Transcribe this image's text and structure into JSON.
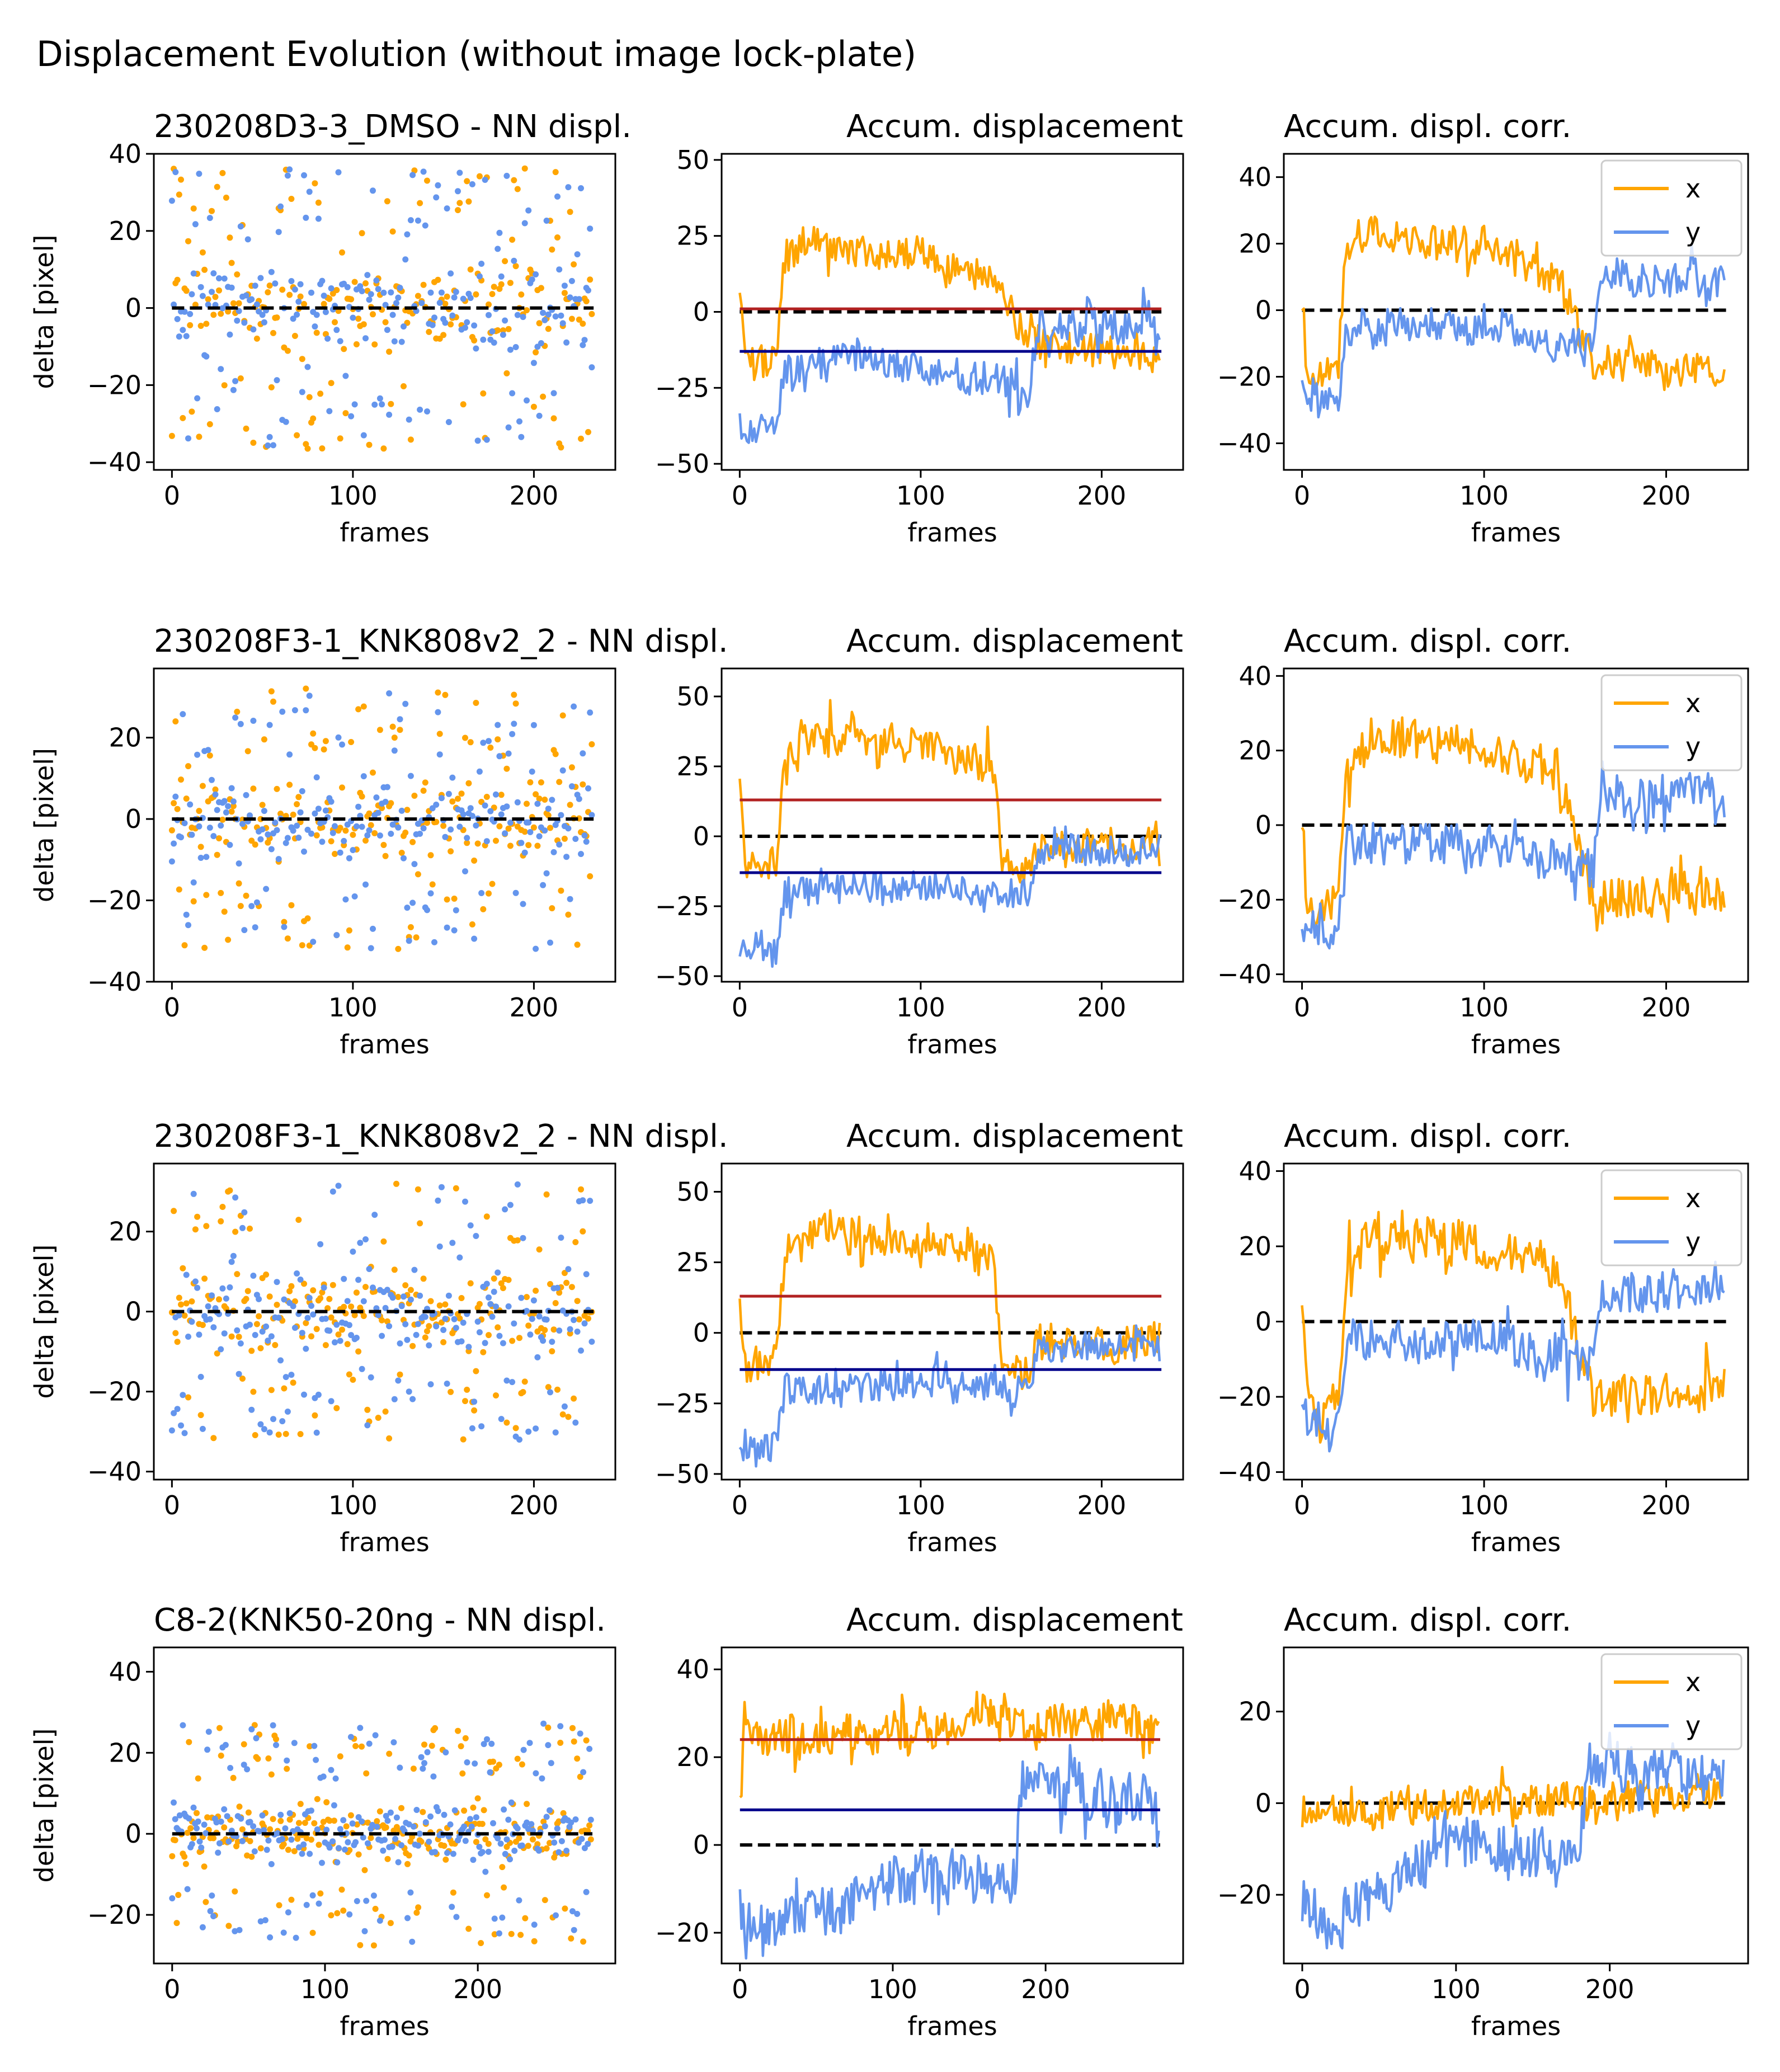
{
  "figure": {
    "suptitle": "Displacement Evolution (without image lock-plate)"
  },
  "colors": {
    "x": "#ffa500",
    "y": "#6495ed",
    "median_x": "#b22222",
    "median_y": "#00008b",
    "zero": "#000000"
  },
  "chart_data": [
    {
      "type": "scatter",
      "title": "230208D3-3_DMSO - NN displ.",
      "xlabel": "frames",
      "ylabel": "delta [pixel]",
      "xlim": [
        -10,
        245
      ],
      "ylim": [
        -42,
        40
      ],
      "xticks": [
        0,
        100,
        200
      ],
      "xticklabels": [
        "0",
        "100",
        "200"
      ],
      "yticks": [
        -40,
        -20,
        0,
        20,
        40
      ],
      "yticklabels": [
        "−40",
        "−20",
        "0",
        "20",
        "40"
      ],
      "n_frames": 233,
      "seed": 11,
      "spread": 9,
      "outlier_amp": 32,
      "series": [
        {
          "name": "x"
        },
        {
          "name": "y"
        }
      ]
    },
    {
      "type": "line",
      "title": "Accum. displacement",
      "xlabel": "frames",
      "ylabel": "",
      "xlim": [
        -10,
        245
      ],
      "ylim": [
        -52,
        52
      ],
      "xticks": [
        0,
        100,
        200
      ],
      "xticklabels": [
        "0",
        "100",
        "200"
      ],
      "yticks": [
        -50,
        -25,
        0,
        25,
        50
      ],
      "yticklabels": [
        "−50",
        "−25",
        "0",
        "25",
        "50"
      ],
      "n_frames": 233,
      "seed": 12,
      "median_x": 1,
      "median_y": -13,
      "series": [
        {
          "name": "x",
          "knots": [
            [
              0,
              5
            ],
            [
              3,
              -18
            ],
            [
              20,
              -15
            ],
            [
              25,
              18
            ],
            [
              40,
              25
            ],
            [
              60,
              20
            ],
            [
              100,
              20
            ],
            [
              140,
              10
            ],
            [
              160,
              -10
            ],
            [
              233,
              -15
            ]
          ],
          "noise": 8
        },
        {
          "name": "y",
          "knots": [
            [
              0,
              -38
            ],
            [
              20,
              -40
            ],
            [
              25,
              -20
            ],
            [
              60,
              -15
            ],
            [
              100,
              -18
            ],
            [
              160,
              -25
            ],
            [
              165,
              -5
            ],
            [
              233,
              -5
            ]
          ],
          "noise": 8
        }
      ]
    },
    {
      "type": "line",
      "title": "Accum. displ. corr.",
      "xlabel": "frames",
      "ylabel": "",
      "xlim": [
        -10,
        245
      ],
      "ylim": [
        -48,
        47
      ],
      "xticks": [
        0,
        100,
        200
      ],
      "xticklabels": [
        "0",
        "100",
        "200"
      ],
      "yticks": [
        -40,
        -20,
        0,
        20,
        40
      ],
      "yticklabels": [
        "−40",
        "−20",
        "0",
        "20",
        "40"
      ],
      "n_frames": 233,
      "seed": 13,
      "legend": {
        "location": "upper right",
        "labels": [
          "x",
          "y"
        ]
      },
      "series": [
        {
          "name": "x",
          "knots": [
            [
              0,
              5
            ],
            [
              3,
              -20
            ],
            [
              20,
              -15
            ],
            [
              25,
              18
            ],
            [
              40,
              25
            ],
            [
              60,
              20
            ],
            [
              100,
              20
            ],
            [
              140,
              10
            ],
            [
              160,
              -15
            ],
            [
              233,
              -20
            ]
          ],
          "noise": 8
        },
        {
          "name": "y",
          "knots": [
            [
              0,
              -25
            ],
            [
              20,
              -28
            ],
            [
              25,
              -5
            ],
            [
              60,
              -5
            ],
            [
              100,
              -5
            ],
            [
              160,
              -12
            ],
            [
              165,
              10
            ],
            [
              233,
              8
            ]
          ],
          "noise": 8
        }
      ]
    },
    {
      "type": "scatter",
      "title": "230208F3-1_KNK808v2_2 - NN displ.",
      "xlabel": "frames",
      "ylabel": "delta [pixel]",
      "xlim": [
        -10,
        245
      ],
      "ylim": [
        -40,
        37
      ],
      "xticks": [
        0,
        100,
        200
      ],
      "xticklabels": [
        "0",
        "100",
        "200"
      ],
      "yticks": [
        -40,
        -20,
        0,
        20
      ],
      "yticklabels": [
        "−40",
        "−20",
        "0",
        "20"
      ],
      "n_frames": 233,
      "seed": 21,
      "spread": 8,
      "outlier_amp": 28,
      "series": [
        {
          "name": "x"
        },
        {
          "name": "y"
        }
      ]
    },
    {
      "type": "line",
      "title": "Accum. displacement",
      "xlabel": "frames",
      "ylabel": "",
      "xlim": [
        -10,
        245
      ],
      "ylim": [
        -52,
        60
      ],
      "xticks": [
        0,
        100,
        200
      ],
      "xticklabels": [
        "0",
        "100",
        "200"
      ],
      "yticks": [
        -50,
        -25,
        0,
        25,
        50
      ],
      "yticklabels": [
        "−50",
        "−25",
        "0",
        "25",
        "50"
      ],
      "n_frames": 233,
      "seed": 22,
      "median_x": 13,
      "median_y": -13,
      "series": [
        {
          "name": "x",
          "knots": [
            [
              0,
              15
            ],
            [
              3,
              -12
            ],
            [
              20,
              -10
            ],
            [
              25,
              25
            ],
            [
              40,
              35
            ],
            [
              100,
              32
            ],
            [
              140,
              25
            ],
            [
              145,
              -10
            ],
            [
              160,
              -12
            ],
            [
              165,
              -3
            ],
            [
              233,
              -3
            ]
          ],
          "noise": 9
        },
        {
          "name": "y",
          "knots": [
            [
              0,
              -38
            ],
            [
              20,
              -40
            ],
            [
              25,
              -20
            ],
            [
              100,
              -18
            ],
            [
              160,
              -20
            ],
            [
              165,
              -5
            ],
            [
              233,
              -5
            ]
          ],
          "noise": 8
        }
      ]
    },
    {
      "type": "line",
      "title": "Accum. displ. corr.",
      "xlabel": "frames",
      "ylabel": "",
      "xlim": [
        -10,
        245
      ],
      "ylim": [
        -42,
        42
      ],
      "xticks": [
        0,
        100,
        200
      ],
      "xticklabels": [
        "0",
        "100",
        "200"
      ],
      "yticks": [
        -40,
        -20,
        0,
        20,
        40
      ],
      "yticklabels": [
        "−40",
        "−20",
        "0",
        "20",
        "40"
      ],
      "n_frames": 233,
      "seed": 23,
      "legend": {
        "location": "upper right",
        "labels": [
          "x",
          "y"
        ]
      },
      "series": [
        {
          "name": "x",
          "knots": [
            [
              0,
              2
            ],
            [
              3,
              -22
            ],
            [
              20,
              -20
            ],
            [
              25,
              15
            ],
            [
              40,
              25
            ],
            [
              100,
              20
            ],
            [
              140,
              15
            ],
            [
              160,
              -20
            ],
            [
              233,
              -18
            ]
          ],
          "noise": 8
        },
        {
          "name": "y",
          "knots": [
            [
              0,
              -25
            ],
            [
              20,
              -28
            ],
            [
              25,
              -5
            ],
            [
              100,
              -5
            ],
            [
              160,
              -12
            ],
            [
              165,
              8
            ],
            [
              233,
              8
            ]
          ],
          "noise": 8
        }
      ]
    },
    {
      "type": "scatter",
      "title": "230208F3-1_KNK808v2_2 - NN displ.",
      "xlabel": "frames",
      "ylabel": "delta [pixel]",
      "xlim": [
        -10,
        245
      ],
      "ylim": [
        -42,
        37
      ],
      "xticks": [
        0,
        100,
        200
      ],
      "xticklabels": [
        "0",
        "100",
        "200"
      ],
      "yticks": [
        -40,
        -20,
        0,
        20
      ],
      "yticklabels": [
        "−40",
        "−20",
        "0",
        "20"
      ],
      "n_frames": 233,
      "seed": 31,
      "spread": 8,
      "outlier_amp": 28,
      "series": [
        {
          "name": "x"
        },
        {
          "name": "y"
        }
      ]
    },
    {
      "type": "line",
      "title": "Accum. displacement",
      "xlabel": "frames",
      "ylabel": "",
      "xlim": [
        -10,
        245
      ],
      "ylim": [
        -52,
        60
      ],
      "xticks": [
        0,
        100,
        200
      ],
      "xticklabels": [
        "0",
        "100",
        "200"
      ],
      "yticks": [
        -50,
        -25,
        0,
        25,
        50
      ],
      "yticklabels": [
        "−50",
        "−25",
        "0",
        "25",
        "50"
      ],
      "n_frames": 233,
      "seed": 32,
      "median_x": 13,
      "median_y": -13,
      "series": [
        {
          "name": "x",
          "knots": [
            [
              0,
              15
            ],
            [
              3,
              -12
            ],
            [
              20,
              -10
            ],
            [
              25,
              25
            ],
            [
              40,
              35
            ],
            [
              100,
              32
            ],
            [
              140,
              25
            ],
            [
              145,
              -10
            ],
            [
              160,
              -12
            ],
            [
              165,
              -3
            ],
            [
              233,
              -3
            ]
          ],
          "noise": 9
        },
        {
          "name": "y",
          "knots": [
            [
              0,
              -38
            ],
            [
              20,
              -40
            ],
            [
              25,
              -20
            ],
            [
              100,
              -18
            ],
            [
              160,
              -20
            ],
            [
              165,
              -5
            ],
            [
              233,
              -5
            ]
          ],
          "noise": 8
        }
      ]
    },
    {
      "type": "line",
      "title": "Accum. displ. corr.",
      "xlabel": "frames",
      "ylabel": "",
      "xlim": [
        -10,
        245
      ],
      "ylim": [
        -42,
        42
      ],
      "xticks": [
        0,
        100,
        200
      ],
      "xticklabels": [
        "0",
        "100",
        "200"
      ],
      "yticks": [
        -40,
        -20,
        0,
        20,
        40
      ],
      "yticklabels": [
        "−40",
        "−20",
        "0",
        "20",
        "40"
      ],
      "n_frames": 233,
      "seed": 33,
      "legend": {
        "location": "upper right",
        "labels": [
          "x",
          "y"
        ]
      },
      "series": [
        {
          "name": "x",
          "knots": [
            [
              0,
              2
            ],
            [
              3,
              -22
            ],
            [
              20,
              -20
            ],
            [
              25,
              15
            ],
            [
              40,
              25
            ],
            [
              100,
              20
            ],
            [
              140,
              15
            ],
            [
              160,
              -20
            ],
            [
              233,
              -18
            ]
          ],
          "noise": 8
        },
        {
          "name": "y",
          "knots": [
            [
              0,
              -25
            ],
            [
              20,
              -28
            ],
            [
              25,
              -5
            ],
            [
              100,
              -5
            ],
            [
              160,
              -12
            ],
            [
              165,
              8
            ],
            [
              233,
              8
            ]
          ],
          "noise": 8
        }
      ]
    },
    {
      "type": "scatter",
      "title": "C8-2(KNK50-20ng - NN displ.",
      "xlabel": "frames",
      "ylabel": "delta [pixel]",
      "xlim": [
        -12,
        290
      ],
      "ylim": [
        -32,
        46
      ],
      "xticks": [
        0,
        100,
        200
      ],
      "xticklabels": [
        "0",
        "100",
        "200"
      ],
      "yticks": [
        -20,
        0,
        20,
        40
      ],
      "yticklabels": [
        "−20",
        "0",
        "20",
        "40"
      ],
      "n_frames": 275,
      "seed": 41,
      "spread": 5,
      "outlier_amp": 24,
      "series": [
        {
          "name": "x"
        },
        {
          "name": "y"
        }
      ]
    },
    {
      "type": "line",
      "title": "Accum. displacement",
      "xlabel": "frames",
      "ylabel": "",
      "xlim": [
        -12,
        290
      ],
      "ylim": [
        -27,
        45
      ],
      "xticks": [
        0,
        100,
        200
      ],
      "xticklabels": [
        "0",
        "100",
        "200"
      ],
      "yticks": [
        -20,
        0,
        20,
        40
      ],
      "yticklabels": [
        "−20",
        "0",
        "20",
        "40"
      ],
      "n_frames": 275,
      "seed": 42,
      "median_x": 24,
      "median_y": 8,
      "series": [
        {
          "name": "x",
          "knots": [
            [
              0,
              10
            ],
            [
              3,
              24
            ],
            [
              100,
              25
            ],
            [
              180,
              28
            ],
            [
              275,
              28
            ]
          ],
          "noise": 6
        },
        {
          "name": "y",
          "knots": [
            [
              0,
              -10
            ],
            [
              3,
              -22
            ],
            [
              20,
              -18
            ],
            [
              60,
              -15
            ],
            [
              100,
              -8
            ],
            [
              180,
              -8
            ],
            [
              185,
              15
            ],
            [
              275,
              10
            ]
          ],
          "noise": 8
        }
      ]
    },
    {
      "type": "line",
      "title": "Accum. displ. corr.",
      "xlabel": "frames",
      "ylabel": "",
      "xlim": [
        -12,
        290
      ],
      "ylim": [
        -35,
        34
      ],
      "xticks": [
        0,
        100,
        200
      ],
      "xticklabels": [
        "0",
        "100",
        "200"
      ],
      "yticks": [
        -20,
        0,
        20
      ],
      "yticklabels": [
        "−20",
        "0",
        "20"
      ],
      "n_frames": 275,
      "seed": 43,
      "legend": {
        "location": "upper right",
        "labels": [
          "x",
          "y"
        ]
      },
      "series": [
        {
          "name": "x",
          "knots": [
            [
              0,
              -2
            ],
            [
              100,
              0
            ],
            [
              275,
              2
            ]
          ],
          "noise": 5
        },
        {
          "name": "y",
          "knots": [
            [
              0,
              -22
            ],
            [
              20,
              -28
            ],
            [
              40,
              -22
            ],
            [
              60,
              -18
            ],
            [
              100,
              -8
            ],
            [
              180,
              -12
            ],
            [
              185,
              8
            ],
            [
              275,
              5
            ]
          ],
          "noise": 8
        }
      ]
    }
  ]
}
